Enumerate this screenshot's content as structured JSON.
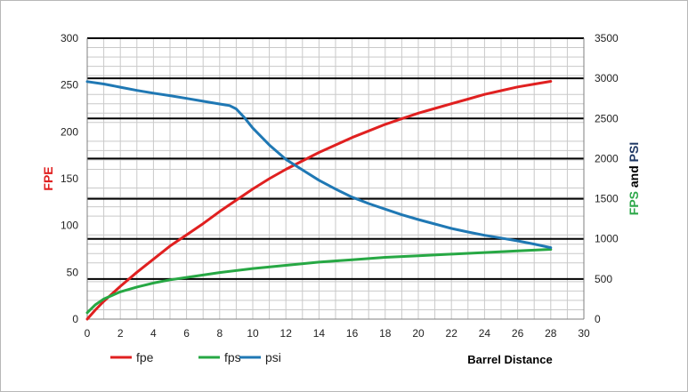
{
  "chart_data": {
    "type": "line",
    "xlabel": "Barrel Distance",
    "ylabel_left": "FPE",
    "ylabel_right": [
      {
        "text": "FPS",
        "color": "#2ea84a"
      },
      {
        "text": " and ",
        "color": "#000000"
      },
      {
        "text": "PSI",
        "color": "#1f3864"
      }
    ],
    "xlim": [
      0,
      30
    ],
    "x_ticks": [
      0,
      2,
      4,
      6,
      8,
      10,
      12,
      14,
      16,
      18,
      20,
      22,
      24,
      26,
      28,
      30
    ],
    "ylim_left": [
      0,
      300
    ],
    "y_ticks_left": [
      0,
      50,
      100,
      150,
      200,
      250,
      300
    ],
    "ylim_right": [
      0,
      3500
    ],
    "y_ticks_right": [
      0,
      500,
      1000,
      1500,
      2000,
      2500,
      3000,
      3500
    ],
    "grid": true,
    "legend_position": "bottom-left",
    "colors": {
      "fpe": "#e02020",
      "fps": "#27a844",
      "psi": "#1f78b4",
      "ylabel_left": "#e02020"
    },
    "series": [
      {
        "name": "fpe",
        "axis": "left",
        "x": [
          0,
          0.5,
          1,
          2,
          3,
          4,
          5,
          6,
          7,
          8,
          9,
          10,
          11,
          12,
          13,
          14,
          15,
          16,
          17,
          18,
          19,
          20,
          21,
          22,
          23,
          24,
          25,
          26,
          27,
          28
        ],
        "y": [
          0,
          10,
          19,
          35,
          50,
          64,
          78,
          90,
          102,
          115,
          127,
          139,
          150,
          160,
          169,
          178,
          186,
          194,
          201,
          208,
          214,
          220,
          225,
          230,
          235,
          240,
          244,
          248,
          251,
          254
        ]
      },
      {
        "name": "fps",
        "axis": "right",
        "x": [
          0,
          0.5,
          1,
          2,
          3,
          4,
          5,
          6,
          8,
          10,
          12,
          14,
          16,
          18,
          20,
          22,
          24,
          26,
          28
        ],
        "y": [
          80,
          180,
          250,
          340,
          400,
          450,
          490,
          520,
          580,
          630,
          670,
          710,
          740,
          770,
          790,
          810,
          830,
          850,
          870
        ]
      },
      {
        "name": "psi",
        "axis": "right",
        "x": [
          0,
          1,
          2,
          3,
          4,
          5,
          6,
          7,
          8,
          8.6,
          9,
          9.5,
          10,
          11,
          12,
          13,
          14,
          15,
          16,
          17,
          18,
          19,
          20,
          21,
          22,
          23,
          24,
          25,
          26,
          27,
          28
        ],
        "y": [
          2960,
          2930,
          2890,
          2850,
          2815,
          2785,
          2750,
          2715,
          2680,
          2660,
          2620,
          2510,
          2380,
          2170,
          1990,
          1860,
          1730,
          1620,
          1520,
          1440,
          1370,
          1300,
          1240,
          1185,
          1130,
          1085,
          1045,
          1010,
          975,
          935,
          890
        ]
      }
    ]
  }
}
